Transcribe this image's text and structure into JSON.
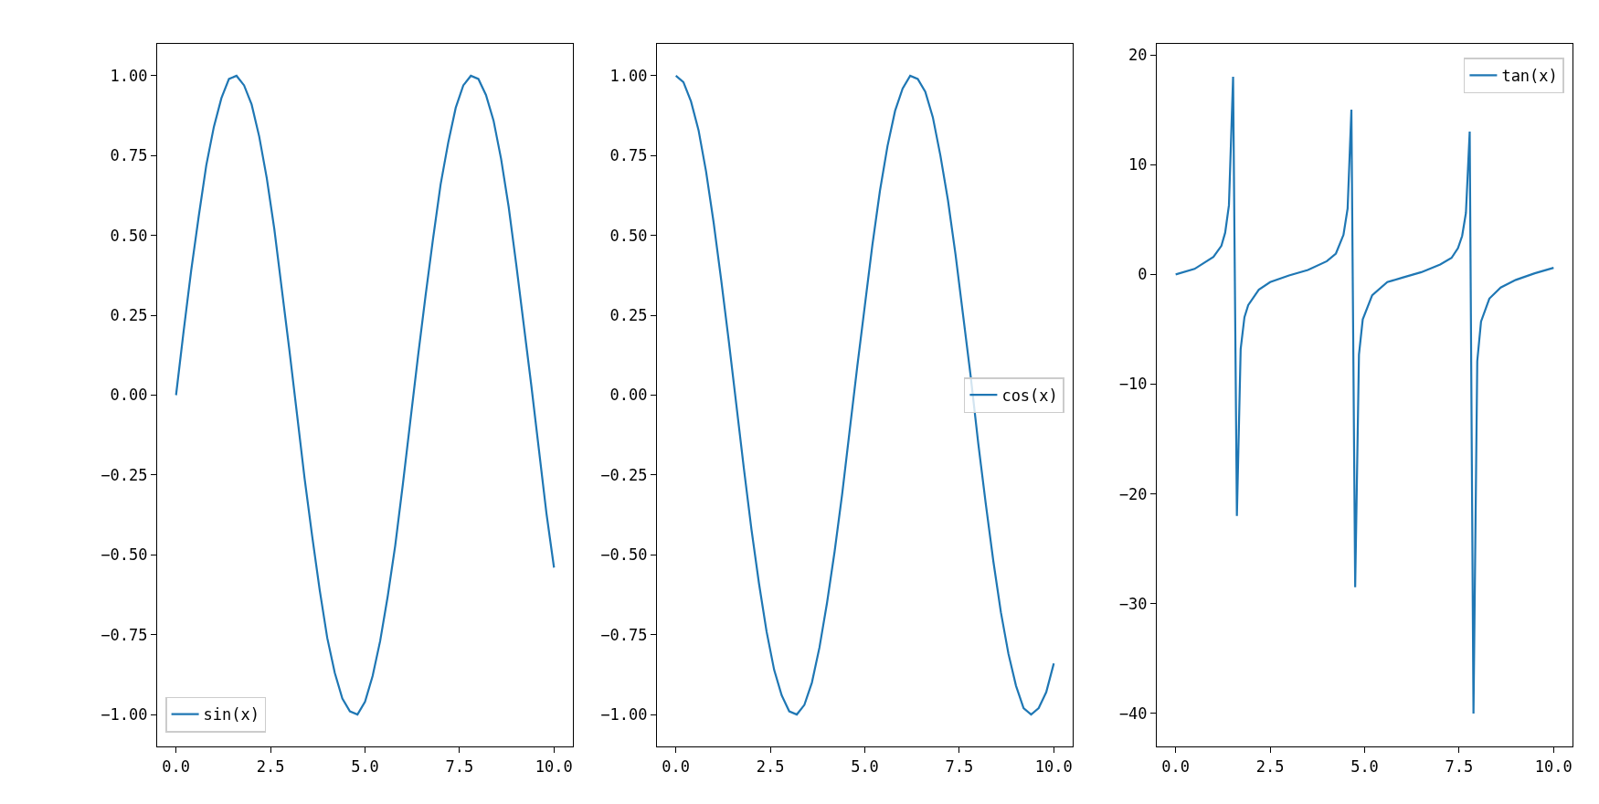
{
  "chart_data": [
    {
      "type": "line",
      "x": [
        0,
        0.2,
        0.4,
        0.6,
        0.8,
        1.0,
        1.2,
        1.4,
        1.6,
        1.8,
        2.0,
        2.2,
        2.4,
        2.6,
        2.8,
        3.0,
        3.2,
        3.4,
        3.6,
        3.8,
        4.0,
        4.2,
        4.4,
        4.6,
        4.8,
        5.0,
        5.2,
        5.4,
        5.6,
        5.8,
        6.0,
        6.2,
        6.4,
        6.6,
        6.8,
        7.0,
        7.2,
        7.4,
        7.6,
        7.8,
        8.0,
        8.2,
        8.4,
        8.6,
        8.8,
        9.0,
        9.2,
        9.4,
        9.6,
        9.8,
        10
      ],
      "series": [
        {
          "name": "sin(x)",
          "color": "#1f77b4",
          "values": [
            0,
            0.2,
            0.39,
            0.56,
            0.72,
            0.84,
            0.93,
            0.99,
            1.0,
            0.97,
            0.91,
            0.81,
            0.68,
            0.52,
            0.33,
            0.14,
            -0.06,
            -0.26,
            -0.44,
            -0.61,
            -0.76,
            -0.87,
            -0.95,
            -0.99,
            -1.0,
            -0.96,
            -0.88,
            -0.77,
            -0.63,
            -0.47,
            -0.28,
            -0.08,
            0.12,
            0.31,
            0.49,
            0.66,
            0.79,
            0.9,
            0.97,
            1.0,
            0.99,
            0.94,
            0.86,
            0.74,
            0.59,
            0.41,
            0.22,
            0.03,
            -0.17,
            -0.37,
            -0.54
          ]
        }
      ],
      "xlim": [
        -0.5,
        10.5
      ],
      "xticks": [
        {
          "value": 0,
          "label": "0.0"
        },
        {
          "value": 2.5,
          "label": "2.5"
        },
        {
          "value": 5,
          "label": "5.0"
        },
        {
          "value": 7.5,
          "label": "7.5"
        },
        {
          "value": 10,
          "label": "10.0"
        }
      ],
      "ylim": [
        -1.1,
        1.1
      ],
      "yticks": [
        {
          "value": -1,
          "label": "−1.00"
        },
        {
          "value": -0.75,
          "label": "−0.75"
        },
        {
          "value": -0.5,
          "label": "−0.50"
        },
        {
          "value": -0.25,
          "label": "−0.25"
        },
        {
          "value": 0,
          "label": "0.00"
        },
        {
          "value": 0.25,
          "label": "0.25"
        },
        {
          "value": 0.5,
          "label": "0.50"
        },
        {
          "value": 0.75,
          "label": "0.75"
        },
        {
          "value": 1,
          "label": "1.00"
        }
      ],
      "legend": "bottom left"
    },
    {
      "type": "line",
      "x": [
        0,
        0.2,
        0.4,
        0.6,
        0.8,
        1.0,
        1.2,
        1.4,
        1.6,
        1.8,
        2.0,
        2.2,
        2.4,
        2.6,
        2.8,
        3.0,
        3.2,
        3.4,
        3.6,
        3.8,
        4.0,
        4.2,
        4.4,
        4.6,
        4.8,
        5.0,
        5.2,
        5.4,
        5.6,
        5.8,
        6.0,
        6.2,
        6.4,
        6.6,
        6.8,
        7.0,
        7.2,
        7.4,
        7.6,
        7.8,
        8.0,
        8.2,
        8.4,
        8.6,
        8.8,
        9.0,
        9.2,
        9.4,
        9.6,
        9.8,
        10
      ],
      "series": [
        {
          "name": "cos(x)",
          "color": "#1f77b4",
          "values": [
            1.0,
            0.98,
            0.92,
            0.83,
            0.7,
            0.54,
            0.36,
            0.17,
            -0.03,
            -0.23,
            -0.42,
            -0.59,
            -0.74,
            -0.86,
            -0.94,
            -0.99,
            -1.0,
            -0.97,
            -0.9,
            -0.79,
            -0.65,
            -0.49,
            -0.31,
            -0.11,
            0.09,
            0.28,
            0.47,
            0.64,
            0.78,
            0.89,
            0.96,
            1.0,
            0.99,
            0.95,
            0.87,
            0.75,
            0.61,
            0.44,
            0.25,
            0.06,
            -0.15,
            -0.34,
            -0.52,
            -0.68,
            -0.81,
            -0.91,
            -0.98,
            -1.0,
            -0.98,
            -0.93,
            -0.84
          ]
        }
      ],
      "xlim": [
        -0.5,
        10.5
      ],
      "xticks": [
        {
          "value": 0,
          "label": "0.0"
        },
        {
          "value": 2.5,
          "label": "2.5"
        },
        {
          "value": 5,
          "label": "5.0"
        },
        {
          "value": 7.5,
          "label": "7.5"
        },
        {
          "value": 10,
          "label": "10.0"
        }
      ],
      "ylim": [
        -1.1,
        1.1
      ],
      "yticks": [
        {
          "value": -1,
          "label": "−1.00"
        },
        {
          "value": -0.75,
          "label": "−0.75"
        },
        {
          "value": -0.5,
          "label": "−0.50"
        },
        {
          "value": -0.25,
          "label": "−0.25"
        },
        {
          "value": 0,
          "label": "0.00"
        },
        {
          "value": 0.25,
          "label": "0.25"
        },
        {
          "value": 0.5,
          "label": "0.50"
        },
        {
          "value": 0.75,
          "label": "0.75"
        },
        {
          "value": 1,
          "label": "1.00"
        }
      ],
      "legend": "right"
    },
    {
      "type": "line",
      "x": [
        0,
        0.5,
        1.0,
        1.21,
        1.31,
        1.41,
        1.52,
        1.62,
        1.72,
        1.82,
        1.92,
        2.2,
        2.5,
        3.0,
        3.5,
        4.0,
        4.24,
        4.44,
        4.55,
        4.65,
        4.75,
        4.85,
        4.95,
        5.2,
        5.6,
        6.0,
        6.5,
        7.0,
        7.3,
        7.47,
        7.58,
        7.68,
        7.78,
        7.88,
        7.98,
        8.08,
        8.3,
        8.6,
        9.0,
        9.5,
        10
      ],
      "series": [
        {
          "name": "tan(x)",
          "color": "#1f77b4",
          "values": [
            0,
            0.5,
            1.6,
            2.6,
            3.8,
            6.3,
            18,
            -22,
            -6.8,
            -3.9,
            -2.8,
            -1.4,
            -0.7,
            -0.1,
            0.4,
            1.2,
            1.9,
            3.6,
            6,
            15,
            -28.5,
            -7.3,
            -4.1,
            -1.9,
            -0.7,
            -0.3,
            0.2,
            0.9,
            1.5,
            2.4,
            3.5,
            5.6,
            13,
            -40,
            -7.9,
            -4.3,
            -2.2,
            -1.2,
            -0.5,
            0.1,
            0.6
          ]
        }
      ],
      "xlim": [
        -0.5,
        10.5
      ],
      "xticks": [
        {
          "value": 0,
          "label": "0.0"
        },
        {
          "value": 2.5,
          "label": "2.5"
        },
        {
          "value": 5,
          "label": "5.0"
        },
        {
          "value": 7.5,
          "label": "7.5"
        },
        {
          "value": 10,
          "label": "10.0"
        }
      ],
      "ylim": [
        -43,
        21
      ],
      "yticks": [
        {
          "value": -40,
          "label": "−40"
        },
        {
          "value": -30,
          "label": "−30"
        },
        {
          "value": -20,
          "label": "−20"
        },
        {
          "value": -10,
          "label": "−10"
        },
        0,
        10,
        20
      ],
      "legend": "top right"
    }
  ]
}
